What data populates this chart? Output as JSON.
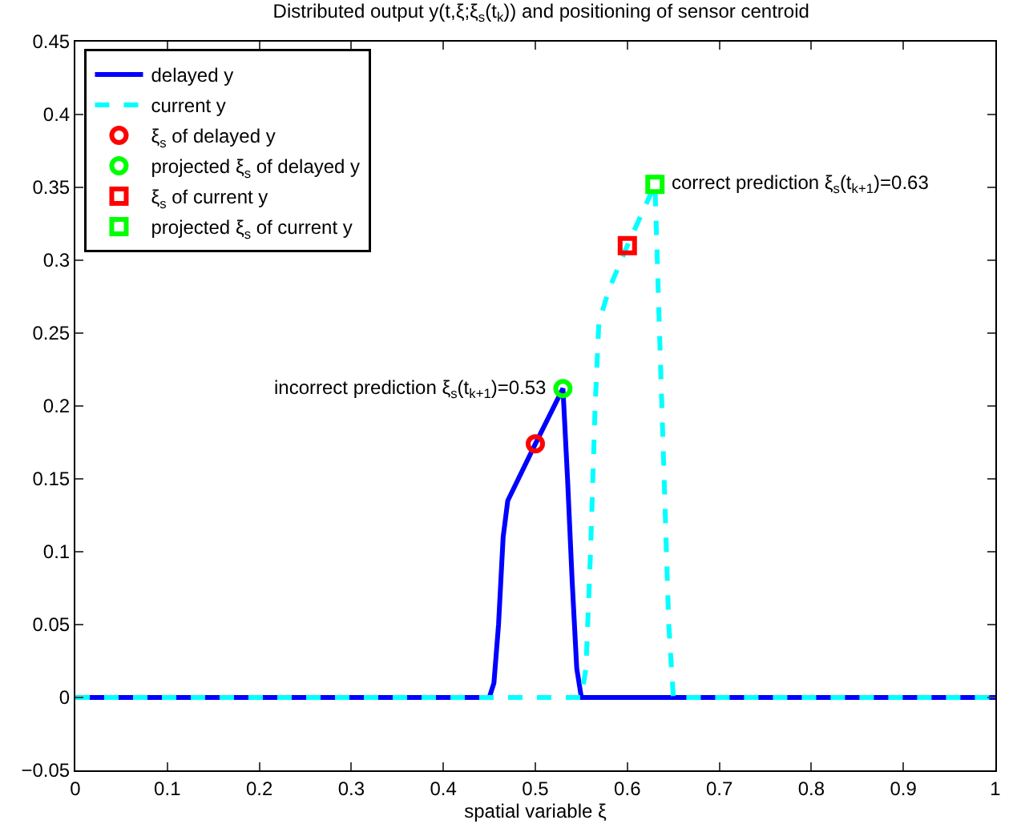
{
  "chart_data": {
    "type": "line",
    "title": "Distributed output y(t,ξ;ξ$_{s}$(t$_{k}$)) and positioning of sensor centroid",
    "xlabel": "spatial variable ξ",
    "xlim": [
      0,
      1
    ],
    "xticks": [
      0,
      0.1,
      0.2,
      0.3,
      0.4,
      0.5,
      0.6,
      0.7,
      0.8,
      0.9,
      1
    ],
    "ylim": [
      -0.05,
      0.45
    ],
    "yticks": [
      -0.05,
      0,
      0.05,
      0.1,
      0.15,
      0.2,
      0.25,
      0.3,
      0.35,
      0.4,
      0.45
    ],
    "grid": false,
    "legend": "top left",
    "series": [
      {
        "name": "delayed y",
        "type": "line",
        "color": "#0000ff",
        "line_style": "solid",
        "marker": "none",
        "x": [
          0,
          0.45,
          0.455,
          0.46,
          0.465,
          0.47,
          0.5,
          0.53,
          0.535,
          0.54,
          0.545,
          0.55,
          1
        ],
        "values": [
          0,
          0,
          0.01,
          0.05,
          0.11,
          0.135,
          0.174,
          0.212,
          0.15,
          0.08,
          0.02,
          0,
          0
        ]
      },
      {
        "name": "current y",
        "type": "line",
        "color": "#00ffff",
        "line_style": "dashed",
        "marker": "none",
        "x": [
          0,
          0.55,
          0.555,
          0.56,
          0.565,
          0.569,
          0.58,
          0.6,
          0.63,
          0.635,
          0.64,
          0.645,
          0.65,
          1
        ],
        "values": [
          0,
          0,
          0.02,
          0.1,
          0.2,
          0.257,
          0.28,
          0.31,
          0.352,
          0.25,
          0.15,
          0.05,
          0,
          0
        ]
      },
      {
        "name": "ξ$_{s}$ of delayed y",
        "type": "scatter",
        "color": "#ff0000",
        "marker": "circle",
        "x": [
          0.5
        ],
        "values": [
          0.174
        ]
      },
      {
        "name": "projected ξ$_{s}$ of delayed y",
        "type": "scatter",
        "color": "#00ff00",
        "marker": "circle",
        "x": [
          0.53
        ],
        "values": [
          0.212
        ]
      },
      {
        "name": "ξ$_{s}$ of current y",
        "type": "scatter",
        "color": "#ff0000",
        "marker": "square",
        "x": [
          0.6
        ],
        "values": [
          0.31
        ]
      },
      {
        "name": "projected ξ$_{s}$ of current y",
        "type": "scatter",
        "color": "#00ff00",
        "marker": "square",
        "x": [
          0.63
        ],
        "values": [
          0.352
        ]
      }
    ],
    "annotations": [
      {
        "text": "incorrect prediction ξ$_{s}$(t$_{k+1}$)=0.53",
        "x": 0.53,
        "y": 0.212
      },
      {
        "text": "correct prediction ξ$_{s}$(t$_{k+1}$)=0.63",
        "x": 0.63,
        "y": 0.352
      }
    ]
  }
}
